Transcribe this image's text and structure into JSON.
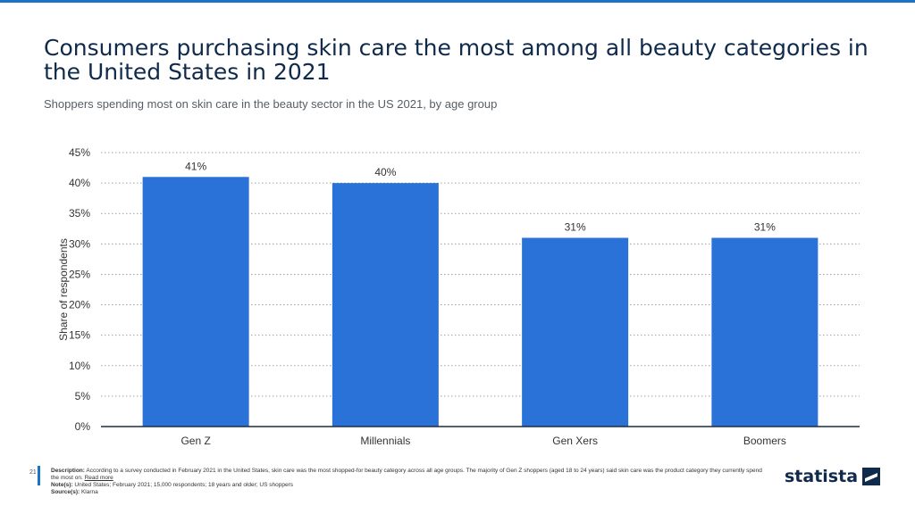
{
  "title": "Consumers purchasing skin care the most among all beauty categories in the United States in 2021",
  "subtitle": "Shoppers spending most on skin care in the beauty sector in the US 2021, by age group",
  "chart_data": {
    "type": "bar",
    "categories": [
      "Gen Z",
      "Millennials",
      "Gen Xers",
      "Boomers"
    ],
    "values": [
      41,
      40,
      31,
      31
    ],
    "data_labels": [
      "41%",
      "40%",
      "31%",
      "31%"
    ],
    "ylabel": "Share of respondents",
    "xlabel": "",
    "ylim": [
      0,
      45
    ],
    "yticks": [
      "0%",
      "5%",
      "10%",
      "15%",
      "20%",
      "25%",
      "30%",
      "35%",
      "40%",
      "45%"
    ],
    "grid": true,
    "bar_color": "#2a72d8"
  },
  "footer": {
    "page_number": "21",
    "description_label": "Description:",
    "description": "According to a survey conducted in February 2021 in the United States, skin care was the most shopped-for beauty category across all age groups. The majority of Gen Z shoppers (aged 18 to 24 years) said skin care was the product category they currently spend the most on.",
    "read_more": "Read more",
    "notes_label": "Note(s):",
    "notes": "United States; February 2021; 15,000 respondents; 18 years and older; US shoppers",
    "source_label": "Source(s):",
    "source": "Klarna"
  },
  "logo": {
    "text": "statista",
    "icon": "statista-logo-icon",
    "color": "#0f2a4a"
  },
  "accent_color": "#1a73c8"
}
